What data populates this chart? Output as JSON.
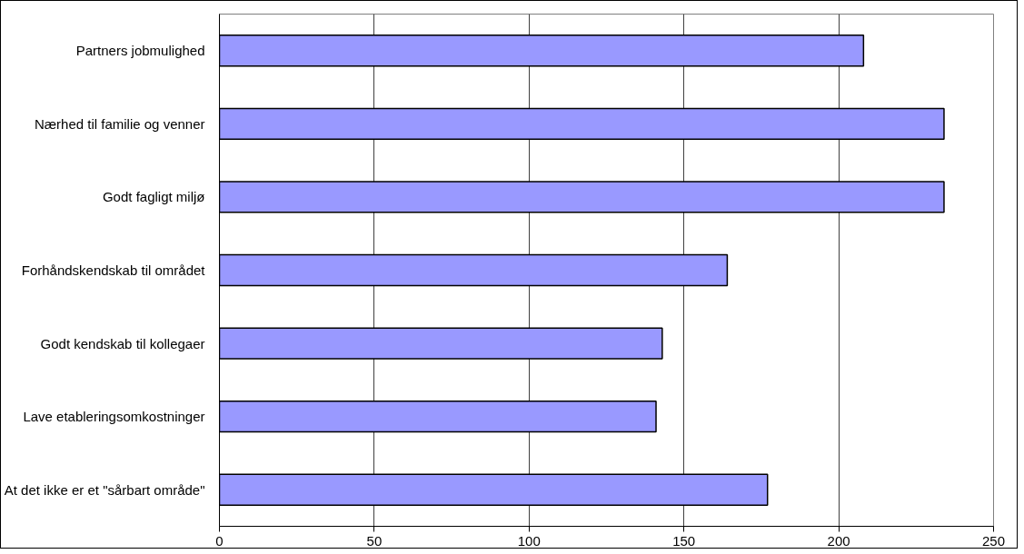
{
  "chart_data": {
    "type": "bar",
    "orientation": "horizontal",
    "categories": [
      "Partners jobmulighed",
      "Nærhed til familie og venner",
      "Godt fagligt miljø",
      "Forhåndskendskab til området",
      "Godt kendskab til kollegaer",
      "Lave etableringsomkostninger",
      "At det ikke er et \"sårbart område\""
    ],
    "values": [
      208,
      234,
      234,
      164,
      143,
      141,
      177
    ],
    "color": "#9999ff",
    "xlim": [
      0,
      250
    ],
    "xticks": [
      0,
      50,
      100,
      150,
      200,
      250
    ],
    "grid": "x"
  }
}
